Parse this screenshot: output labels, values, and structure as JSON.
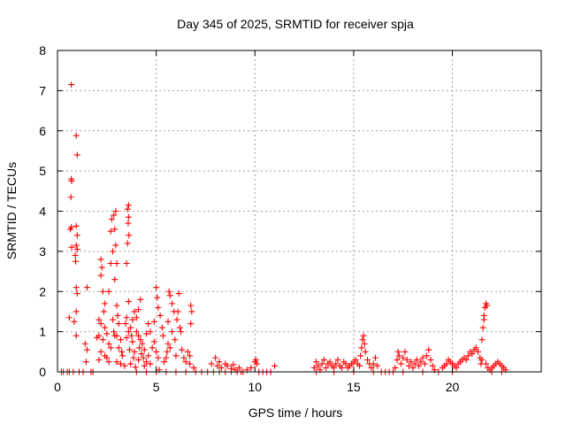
{
  "chart_data": {
    "type": "scatter",
    "title": "Day 345 of 2025, SRMTID for receiver spja",
    "xlabel": "GPS time / hours",
    "ylabel": "SRMTID / TECUs",
    "xlim": [
      0,
      24.5
    ],
    "ylim": [
      0,
      8
    ],
    "xticks": [
      0,
      5,
      10,
      15,
      20
    ],
    "yticks": [
      0,
      1,
      2,
      3,
      4,
      5,
      6,
      7,
      8
    ],
    "grid": true,
    "marker": "plus",
    "color": "#ff0000",
    "points": [
      [
        0.7,
        7.15
      ],
      [
        0.95,
        5.88
      ],
      [
        1.0,
        5.4
      ],
      [
        0.7,
        4.8
      ],
      [
        0.72,
        4.75
      ],
      [
        0.68,
        4.35
      ],
      [
        0.7,
        3.6
      ],
      [
        0.65,
        3.55
      ],
      [
        0.95,
        3.63
      ],
      [
        1.0,
        3.4
      ],
      [
        0.72,
        3.1
      ],
      [
        0.95,
        3.15
      ],
      [
        1.0,
        3.05
      ],
      [
        0.9,
        2.9
      ],
      [
        0.92,
        2.75
      ],
      [
        0.95,
        2.1
      ],
      [
        1.0,
        1.95
      ],
      [
        1.5,
        2.1
      ],
      [
        0.95,
        1.5
      ],
      [
        0.6,
        1.35
      ],
      [
        0.85,
        1.25
      ],
      [
        0.95,
        0.9
      ],
      [
        1.4,
        0.7
      ],
      [
        1.5,
        0.55
      ],
      [
        1.45,
        0.25
      ],
      [
        0.3,
        0.0
      ],
      [
        0.5,
        0.0
      ],
      [
        0.8,
        0.0
      ],
      [
        1.1,
        0.0
      ],
      [
        1.3,
        0.0
      ],
      [
        1.7,
        0.0
      ],
      [
        1.8,
        0.0
      ],
      [
        0.2,
        0.0
      ],
      [
        0.6,
        0.0
      ],
      [
        2.2,
        2.8
      ],
      [
        2.25,
        2.6
      ],
      [
        2.2,
        2.4
      ],
      [
        2.3,
        2.0
      ],
      [
        2.4,
        1.7
      ],
      [
        2.35,
        1.5
      ],
      [
        2.1,
        1.3
      ],
      [
        2.2,
        1.2
      ],
      [
        2.4,
        1.1
      ],
      [
        2.5,
        0.95
      ],
      [
        2.1,
        0.9
      ],
      [
        2.0,
        0.85
      ],
      [
        2.3,
        0.8
      ],
      [
        2.6,
        0.7
      ],
      [
        2.2,
        0.5
      ],
      [
        2.4,
        0.4
      ],
      [
        2.5,
        0.35
      ],
      [
        2.1,
        0.3
      ],
      [
        2.6,
        0.25
      ],
      [
        2.7,
        0.6
      ],
      [
        2.8,
        1.3
      ],
      [
        2.85,
        1.0
      ],
      [
        2.9,
        0.9
      ],
      [
        2.7,
        2.7
      ],
      [
        2.8,
        3.0
      ],
      [
        2.75,
        3.8
      ],
      [
        2.85,
        3.9
      ],
      [
        2.9,
        3.55
      ],
      [
        2.95,
        3.15
      ],
      [
        3.0,
        2.7
      ],
      [
        2.9,
        2.3
      ],
      [
        2.6,
        2.0
      ],
      [
        2.7,
        3.5
      ],
      [
        2.95,
        4.0
      ],
      [
        3.0,
        1.65
      ],
      [
        3.05,
        1.4
      ],
      [
        3.1,
        1.2
      ],
      [
        3.0,
        0.9
      ],
      [
        3.2,
        0.8
      ],
      [
        3.1,
        0.6
      ],
      [
        3.25,
        0.5
      ],
      [
        3.3,
        0.4
      ],
      [
        3.0,
        0.25
      ],
      [
        3.2,
        0.2
      ],
      [
        3.4,
        0.15
      ],
      [
        3.5,
        0.85
      ],
      [
        3.6,
        4.15
      ],
      [
        3.55,
        4.05
      ],
      [
        3.6,
        3.85
      ],
      [
        3.58,
        3.7
      ],
      [
        3.62,
        3.4
      ],
      [
        3.55,
        3.2
      ],
      [
        3.5,
        2.7
      ],
      [
        3.6,
        1.75
      ],
      [
        3.5,
        1.35
      ],
      [
        3.45,
        1.2
      ],
      [
        3.7,
        1.1
      ],
      [
        3.6,
        1.0
      ],
      [
        3.75,
        0.9
      ],
      [
        3.8,
        0.75
      ],
      [
        3.65,
        0.55
      ],
      [
        3.9,
        0.5
      ],
      [
        3.85,
        0.35
      ],
      [
        3.7,
        0.2
      ],
      [
        3.95,
        0.12
      ],
      [
        3.8,
        1.3
      ],
      [
        3.9,
        1.5
      ],
      [
        4.0,
        1.35
      ],
      [
        4.1,
        1.55
      ],
      [
        4.2,
        1.8
      ],
      [
        4.0,
        1.0
      ],
      [
        4.1,
        0.9
      ],
      [
        4.2,
        0.8
      ],
      [
        4.3,
        0.7
      ],
      [
        4.15,
        0.6
      ],
      [
        4.4,
        0.55
      ],
      [
        4.25,
        0.45
      ],
      [
        4.35,
        0.35
      ],
      [
        4.1,
        0.3
      ],
      [
        4.5,
        0.25
      ],
      [
        4.6,
        0.4
      ],
      [
        4.4,
        0.15
      ],
      [
        4.7,
        0.2
      ],
      [
        4.8,
        0.6
      ],
      [
        4.9,
        0.75
      ],
      [
        5.0,
        0.5
      ],
      [
        5.1,
        0.35
      ],
      [
        4.5,
        0.95
      ],
      [
        4.6,
        1.2
      ],
      [
        4.7,
        1.0
      ],
      [
        4.9,
        1.25
      ],
      [
        5.1,
        1.6
      ],
      [
        5.0,
        2.1
      ],
      [
        5.05,
        1.85
      ],
      [
        5.2,
        1.4
      ],
      [
        5.3,
        1.1
      ],
      [
        5.35,
        0.9
      ],
      [
        5.15,
        0.05
      ],
      [
        5.4,
        0.25
      ],
      [
        5.5,
        0.35
      ],
      [
        5.55,
        0.5
      ],
      [
        5.6,
        0.7
      ],
      [
        5.7,
        0.6
      ],
      [
        5.6,
        1.25
      ],
      [
        5.65,
        2.0
      ],
      [
        5.7,
        1.9
      ],
      [
        5.8,
        1.7
      ],
      [
        5.9,
        1.5
      ],
      [
        5.8,
        1.0
      ],
      [
        5.95,
        0.8
      ],
      [
        6.0,
        0.4
      ],
      [
        6.05,
        1.3
      ],
      [
        6.1,
        1.5
      ],
      [
        6.15,
        1.95
      ],
      [
        6.2,
        1.1
      ],
      [
        6.25,
        1.0
      ],
      [
        6.3,
        0.55
      ],
      [
        6.4,
        0.35
      ],
      [
        6.5,
        0.25
      ],
      [
        6.6,
        0.5
      ],
      [
        6.7,
        0.4
      ],
      [
        6.75,
        1.65
      ],
      [
        6.8,
        1.5
      ],
      [
        6.75,
        1.2
      ],
      [
        6.7,
        0.2
      ],
      [
        6.9,
        0.1
      ],
      [
        4.0,
        0.0
      ],
      [
        4.5,
        0.0
      ],
      [
        5.0,
        0.0
      ],
      [
        5.5,
        0.0
      ],
      [
        6.0,
        0.0
      ],
      [
        6.5,
        0.0
      ],
      [
        7.0,
        0.0
      ],
      [
        7.3,
        0.0
      ],
      [
        7.6,
        0.0
      ],
      [
        7.9,
        0.0
      ],
      [
        7.8,
        0.2
      ],
      [
        8.0,
        0.35
      ],
      [
        8.1,
        0.15
      ],
      [
        8.2,
        0.25
      ],
      [
        8.3,
        0.1
      ],
      [
        8.5,
        0.2
      ],
      [
        8.6,
        0.15
      ],
      [
        8.8,
        0.08
      ],
      [
        8.9,
        0.18
      ],
      [
        9.0,
        0.05
      ],
      [
        9.2,
        0.1
      ],
      [
        9.4,
        0.0
      ],
      [
        9.6,
        0.05
      ],
      [
        9.8,
        0.1
      ],
      [
        10.0,
        0.25
      ],
      [
        10.05,
        0.3
      ],
      [
        10.1,
        0.2
      ],
      [
        10.2,
        0.0
      ],
      [
        10.4,
        0.0
      ],
      [
        10.6,
        0.0
      ],
      [
        10.8,
        0.0
      ],
      [
        11.0,
        0.15
      ],
      [
        8.2,
        0.0
      ],
      [
        8.5,
        0.0
      ],
      [
        8.8,
        0.0
      ],
      [
        9.1,
        0.0
      ],
      [
        9.3,
        0.0
      ],
      [
        13.0,
        0.1
      ],
      [
        13.1,
        0.25
      ],
      [
        13.2,
        0.15
      ],
      [
        13.3,
        0.05
      ],
      [
        13.4,
        0.2
      ],
      [
        13.5,
        0.3
      ],
      [
        13.6,
        0.1
      ],
      [
        13.7,
        0.2
      ],
      [
        13.8,
        0.25
      ],
      [
        13.9,
        0.15
      ],
      [
        14.0,
        0.1
      ],
      [
        14.1,
        0.2
      ],
      [
        14.2,
        0.3
      ],
      [
        14.3,
        0.15
      ],
      [
        14.4,
        0.1
      ],
      [
        14.5,
        0.25
      ],
      [
        14.6,
        0.2
      ],
      [
        14.7,
        0.1
      ],
      [
        14.8,
        0.15
      ],
      [
        14.9,
        0.2
      ],
      [
        15.0,
        0.25
      ],
      [
        15.1,
        0.3
      ],
      [
        15.2,
        0.2
      ],
      [
        15.3,
        0.15
      ],
      [
        15.35,
        0.4
      ],
      [
        15.4,
        0.6
      ],
      [
        15.45,
        0.8
      ],
      [
        15.5,
        0.9
      ],
      [
        15.55,
        0.7
      ],
      [
        15.6,
        0.5
      ],
      [
        15.7,
        0.3
      ],
      [
        15.8,
        0.2
      ],
      [
        15.9,
        0.1
      ],
      [
        16.0,
        0.2
      ],
      [
        16.1,
        0.35
      ],
      [
        16.2,
        0.15
      ],
      [
        16.4,
        0.0
      ],
      [
        16.6,
        0.0
      ],
      [
        16.8,
        0.0
      ],
      [
        17.0,
        0.0
      ],
      [
        17.1,
        0.1
      ],
      [
        17.2,
        0.3
      ],
      [
        17.25,
        0.5
      ],
      [
        17.3,
        0.4
      ],
      [
        17.4,
        0.2
      ],
      [
        17.5,
        0.35
      ],
      [
        17.6,
        0.5
      ],
      [
        17.7,
        0.3
      ],
      [
        17.8,
        0.15
      ],
      [
        17.9,
        0.25
      ],
      [
        18.0,
        0.1
      ],
      [
        18.1,
        0.2
      ],
      [
        18.2,
        0.3
      ],
      [
        18.3,
        0.15
      ],
      [
        18.4,
        0.25
      ],
      [
        18.5,
        0.35
      ],
      [
        18.6,
        0.2
      ],
      [
        18.7,
        0.4
      ],
      [
        18.8,
        0.55
      ],
      [
        18.9,
        0.3
      ],
      [
        19.0,
        0.15
      ],
      [
        19.1,
        0.05
      ],
      [
        19.3,
        0.0
      ],
      [
        19.5,
        0.1
      ],
      [
        19.6,
        0.15
      ],
      [
        19.7,
        0.2
      ],
      [
        19.8,
        0.3
      ],
      [
        19.9,
        0.25
      ],
      [
        20.0,
        0.2
      ],
      [
        20.1,
        0.15
      ],
      [
        20.2,
        0.1
      ],
      [
        20.3,
        0.2
      ],
      [
        20.4,
        0.25
      ],
      [
        20.5,
        0.3
      ],
      [
        20.6,
        0.35
      ],
      [
        20.7,
        0.3
      ],
      [
        20.8,
        0.4
      ],
      [
        20.9,
        0.5
      ],
      [
        21.0,
        0.45
      ],
      [
        21.1,
        0.55
      ],
      [
        21.2,
        0.6
      ],
      [
        21.3,
        0.5
      ],
      [
        21.4,
        0.35
      ],
      [
        21.45,
        0.2
      ],
      [
        21.5,
        0.8
      ],
      [
        21.55,
        1.1
      ],
      [
        21.6,
        1.4
      ],
      [
        21.65,
        1.6
      ],
      [
        21.7,
        1.7
      ],
      [
        21.75,
        1.65
      ],
      [
        21.6,
        1.3
      ],
      [
        21.5,
        0.3
      ],
      [
        21.7,
        0.2
      ],
      [
        21.8,
        0.1
      ],
      [
        21.9,
        0.05
      ],
      [
        22.0,
        0.1
      ],
      [
        22.1,
        0.15
      ],
      [
        22.2,
        0.2
      ],
      [
        22.3,
        0.25
      ],
      [
        22.4,
        0.2
      ],
      [
        22.5,
        0.15
      ],
      [
        22.6,
        0.1
      ],
      [
        22.7,
        0.05
      ],
      [
        13.1,
        0.0
      ],
      [
        14.0,
        0.0
      ],
      [
        15.0,
        0.0
      ],
      [
        16.0,
        0.0
      ],
      [
        17.5,
        0.0
      ],
      [
        18.5,
        0.0
      ],
      [
        20.0,
        0.0
      ],
      [
        22.0,
        0.0
      ],
      [
        22.5,
        0.0
      ]
    ]
  }
}
